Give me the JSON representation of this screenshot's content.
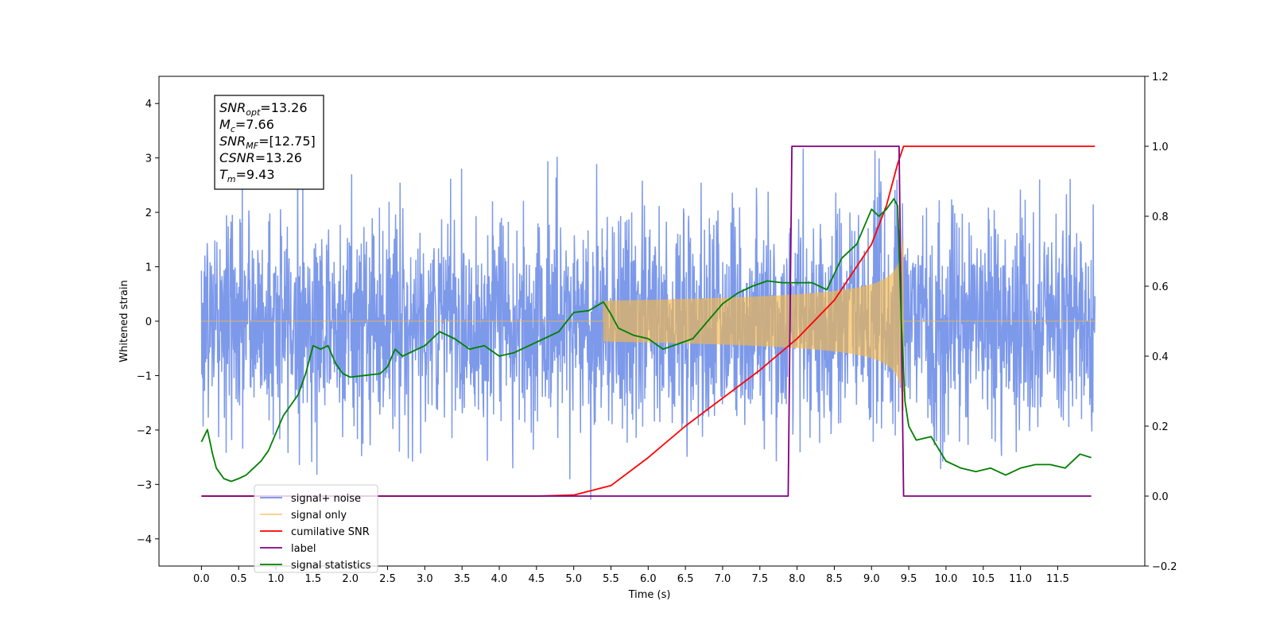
{
  "chart_data": {
    "type": "line",
    "title": "",
    "xlabel": "Time (s)",
    "ylabel": "Whitened strain",
    "ylabel_right": "",
    "xlim": [
      -0.57,
      12.67
    ],
    "ylim": [
      -4.5,
      4.5
    ],
    "ylim_right": [
      -0.2,
      1.2
    ],
    "x_ticks": [
      "0.0",
      "0.5",
      "1.0",
      "1.5",
      "2.0",
      "2.5",
      "3.0",
      "3.5",
      "4.0",
      "4.5",
      "5.0",
      "5.5",
      "6.0",
      "6.5",
      "7.0",
      "7.5",
      "8.0",
      "8.5",
      "9.0",
      "9.5",
      "10.0",
      "10.5",
      "11.0",
      "11.5"
    ],
    "y_ticks_left": [
      "−4",
      "−3",
      "−2",
      "−1",
      "0",
      "1",
      "2",
      "3",
      "4"
    ],
    "y_ticks_right": [
      "−0.2",
      "0.0",
      "0.2",
      "0.4",
      "0.6",
      "0.8",
      "1.0",
      "1.2"
    ],
    "grid": false,
    "legend_placement": "lower-left",
    "info_box": [
      {
        "base": "SNR",
        "sub": "opt",
        "rest": "=13.26"
      },
      {
        "base": "M",
        "sub": "c",
        "rest": "=7.66"
      },
      {
        "base": "SNR",
        "sub": "MF",
        "rest": "=[12.75]"
      },
      {
        "base": "CSNR",
        "sub": "",
        "rest": "=13.26"
      },
      {
        "base": "T",
        "sub": "m",
        "rest": "=9.43"
      }
    ],
    "series": [
      {
        "name": "signal+ noise",
        "axis": "left",
        "color": "#6f8ee8",
        "noise_std": 1.0,
        "x_range": [
          0.0,
          12.0
        ],
        "approx_range": [
          -4.1,
          4.05
        ]
      },
      {
        "name": "signal only",
        "axis": "left",
        "color": "#f5b94a",
        "chirp": {
          "start": 5.4,
          "merger": 9.43,
          "peak_amplitude": 1.7,
          "end": 9.43
        },
        "x_range": [
          0.0,
          12.0
        ]
      },
      {
        "name": "cumilative SNR",
        "axis": "right",
        "color": "#ff0000",
        "x": [
          0.0,
          4.5,
          5.0,
          5.5,
          6.0,
          6.5,
          7.0,
          7.5,
          8.0,
          8.5,
          9.0,
          9.2,
          9.35,
          9.43,
          9.45,
          12.0
        ],
        "y": [
          0.0,
          0.0,
          0.003,
          0.03,
          0.11,
          0.2,
          0.28,
          0.36,
          0.45,
          0.56,
          0.72,
          0.83,
          0.95,
          1.0,
          1.0,
          1.0
        ]
      },
      {
        "name": "label",
        "axis": "right",
        "color": "#800080",
        "x": [
          0.0,
          7.88,
          7.93,
          9.37,
          9.43,
          11.95
        ],
        "y": [
          0.0,
          0.0,
          1.0,
          1.0,
          0.0,
          0.0
        ]
      },
      {
        "name": "signal statistics",
        "axis": "right",
        "color": "#008000",
        "x": [
          0.0,
          0.08,
          0.15,
          0.2,
          0.3,
          0.4,
          0.5,
          0.6,
          0.7,
          0.8,
          0.9,
          1.0,
          1.1,
          1.2,
          1.3,
          1.4,
          1.5,
          1.6,
          1.7,
          1.8,
          1.9,
          2.0,
          2.2,
          2.4,
          2.5,
          2.6,
          2.7,
          2.8,
          3.0,
          3.2,
          3.4,
          3.6,
          3.8,
          4.0,
          4.2,
          4.4,
          4.6,
          4.8,
          5.0,
          5.2,
          5.4,
          5.5,
          5.6,
          5.8,
          6.0,
          6.2,
          6.4,
          6.6,
          6.8,
          7.0,
          7.2,
          7.4,
          7.6,
          7.8,
          8.0,
          8.2,
          8.4,
          8.6,
          8.8,
          9.0,
          9.1,
          9.2,
          9.3,
          9.35,
          9.4,
          9.45,
          9.5,
          9.6,
          9.8,
          10.0,
          10.2,
          10.4,
          10.6,
          10.8,
          11.0,
          11.2,
          11.4,
          11.6,
          11.8,
          11.95
        ],
        "y": [
          0.155,
          0.19,
          0.12,
          0.08,
          0.05,
          0.042,
          0.05,
          0.06,
          0.08,
          0.1,
          0.13,
          0.18,
          0.23,
          0.26,
          0.29,
          0.35,
          0.43,
          0.42,
          0.43,
          0.38,
          0.35,
          0.34,
          0.345,
          0.35,
          0.37,
          0.42,
          0.4,
          0.41,
          0.43,
          0.47,
          0.45,
          0.42,
          0.43,
          0.4,
          0.41,
          0.43,
          0.45,
          0.47,
          0.525,
          0.53,
          0.555,
          0.52,
          0.48,
          0.46,
          0.45,
          0.42,
          0.435,
          0.45,
          0.5,
          0.55,
          0.58,
          0.6,
          0.615,
          0.61,
          0.61,
          0.61,
          0.59,
          0.68,
          0.72,
          0.82,
          0.8,
          0.82,
          0.85,
          0.83,
          0.5,
          0.27,
          0.2,
          0.16,
          0.17,
          0.1,
          0.08,
          0.07,
          0.08,
          0.06,
          0.08,
          0.09,
          0.09,
          0.08,
          0.12,
          0.11
        ]
      }
    ]
  }
}
